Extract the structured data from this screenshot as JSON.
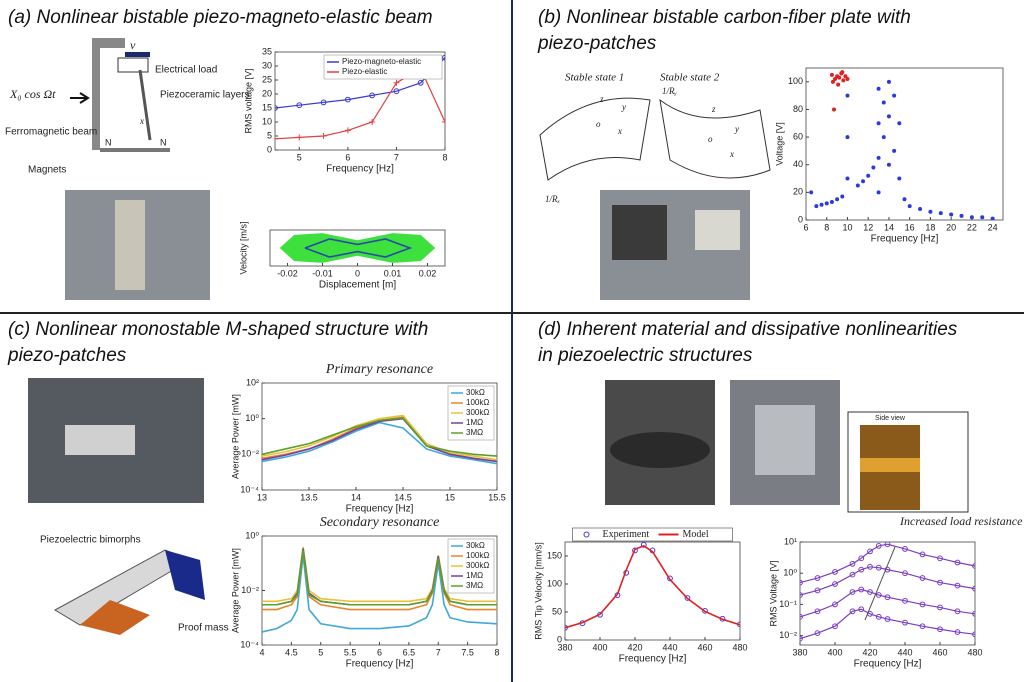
{
  "panels": [
    {
      "title": [
        "(a) Nonlinear bistable piezo-magneto-elastic beam"
      ]
    },
    {
      "title": [
        "(b) Nonlinear bistable carbon-fiber plate with",
        "piezo-patches"
      ]
    },
    {
      "title": [
        "(c) Nonlinear monostable M-shaped structure with",
        "piezo-patches"
      ]
    },
    {
      "title": [
        "(d) Inherent material and dissipative nonlinearities",
        "in piezoelectric structures"
      ]
    }
  ],
  "labels": [
    "Electrical load",
    "Piezoceramic layers",
    "Ferromagnetic beam",
    "Magnets",
    "X₀ cos Ωt",
    "v",
    "x",
    "N",
    "N",
    "Stable state 1",
    "Stable state 2",
    "1/Rₓ",
    "1/Rᵧ",
    "z",
    "y",
    "x",
    "o",
    "z",
    "y",
    "x",
    "o",
    "Piezoelectric bimorphs",
    "Proof mass",
    "Side view"
  ],
  "chart_data": [
    {
      "type": "line",
      "x": [
        4.5,
        5,
        5.5,
        6,
        6.5,
        7,
        7.5,
        8
      ],
      "xlim": [
        4.5,
        8
      ],
      "xticks": [
        5,
        6,
        7,
        8
      ],
      "ylim": [
        0,
        35
      ],
      "yticks": [
        0,
        5,
        10,
        15,
        20,
        25,
        30,
        35
      ],
      "xlabel": "Frequency [Hz]",
      "ylabel": "RMS voltage [V]",
      "legend": "upper right",
      "series": [
        {
          "name": "Piezo-magneto-elastic",
          "color": "#3a3ad0",
          "marker": "o",
          "values": [
            15,
            16,
            17,
            18,
            19.5,
            21,
            24,
            33
          ]
        },
        {
          "name": "Piezo-elastic",
          "color": "#e04040",
          "marker": "+",
          "values": [
            4,
            4.5,
            5,
            7,
            10,
            24,
            29,
            10
          ]
        }
      ]
    },
    {
      "type": "line",
      "xlim": [
        -0.025,
        0.025
      ],
      "xticks": [
        -0.02,
        -0.01,
        0,
        0.01,
        0.02
      ],
      "ylim": [
        -1,
        1
      ],
      "xlabel": "Displacement [m]",
      "ylabel": "Velocity [m/s]",
      "series": [
        {
          "color": "#3ee03e",
          "fill": true,
          "x": [
            -0.022,
            -0.018,
            -0.01,
            0,
            0.01,
            0.018,
            0.022,
            0.018,
            0.01,
            0,
            -0.01,
            -0.018,
            -0.022
          ],
          "values": [
            0,
            0.7,
            0.8,
            0.4,
            0.8,
            0.7,
            0,
            -0.7,
            -0.8,
            -0.4,
            -0.8,
            -0.7,
            0
          ]
        },
        {
          "color": "#2a4aa8",
          "x": [
            -0.015,
            -0.008,
            0,
            0.008,
            0.015,
            0.008,
            0,
            -0.008,
            -0.015
          ],
          "values": [
            0,
            0.5,
            0.2,
            0.5,
            0,
            -0.5,
            -0.2,
            -0.5,
            0
          ]
        }
      ]
    },
    {
      "type": "scatter",
      "xlim": [
        6,
        25
      ],
      "xticks": [
        6,
        8,
        10,
        12,
        14,
        16,
        18,
        20,
        22,
        24
      ],
      "ylim": [
        0,
        110
      ],
      "yticks": [
        0,
        20,
        40,
        60,
        80,
        100
      ],
      "xlabel": "Frequency  [Hz]",
      "ylabel": "Voltage [V]",
      "series": [
        {
          "color": "#2a3ae0",
          "x": [
            6.5,
            7,
            7.5,
            8,
            8.5,
            9,
            9.5,
            10,
            10,
            10,
            11,
            11.5,
            12,
            12.5,
            13,
            13,
            13,
            13,
            13.5,
            13.5,
            14,
            14,
            14,
            14.5,
            14.5,
            15,
            15,
            15.5,
            16,
            17,
            18,
            19,
            20,
            21,
            22,
            23,
            24
          ],
          "values": [
            20,
            10,
            11,
            12,
            13,
            15,
            17,
            30,
            60,
            90,
            25,
            28,
            32,
            38,
            45,
            70,
            95,
            20,
            60,
            85,
            40,
            75,
            100,
            50,
            90,
            30,
            70,
            15,
            10,
            8,
            6,
            5,
            4,
            3,
            2,
            2,
            1
          ]
        },
        {
          "color": "#e02020",
          "x": [
            8.5,
            8.6,
            8.8,
            9,
            9.2,
            9.4,
            9.6,
            9.8,
            10,
            8.7,
            9.1,
            9.5
          ],
          "values": [
            105,
            100,
            102,
            104,
            103,
            106,
            101,
            104,
            102,
            80,
            98,
            107
          ]
        }
      ]
    },
    {
      "type": "line",
      "title": "Primary resonance",
      "log": true,
      "x": [
        13,
        13.25,
        13.5,
        13.75,
        14,
        14.25,
        14.5,
        14.75,
        15,
        15.25,
        15.5
      ],
      "xlim": [
        13,
        15.5
      ],
      "xticks": [
        13,
        13.5,
        14,
        14.5,
        15,
        15.5
      ],
      "ylim": [
        0.0001,
        100
      ],
      "yticks": [
        {
          "value": 0.0001,
          "label": "10⁻⁴"
        },
        {
          "value": 0.01,
          "label": "10⁻²"
        },
        {
          "value": 1,
          "label": "10⁰"
        },
        {
          "value": 100,
          "label": "10²"
        }
      ],
      "xlabel": "Frequency [Hz]",
      "ylabel": "Average Power [mW]",
      "legend": "upper right",
      "series": [
        {
          "name": "30kΩ",
          "color": "#3fa9d8",
          "values": [
            0.004,
            0.007,
            0.015,
            0.05,
            0.2,
            0.6,
            0.3,
            0.02,
            0.008,
            0.005,
            0.003
          ]
        },
        {
          "name": "100kΩ",
          "color": "#e8862a",
          "values": [
            0.006,
            0.01,
            0.02,
            0.07,
            0.3,
            0.8,
            1.2,
            0.03,
            0.01,
            0.006,
            0.004
          ]
        },
        {
          "name": "300kΩ",
          "color": "#e8c23a",
          "values": [
            0.008,
            0.014,
            0.03,
            0.1,
            0.4,
            1,
            1.5,
            0.04,
            0.012,
            0.008,
            0.005
          ]
        },
        {
          "name": "1MΩ",
          "color": "#7b3f9e",
          "values": [
            0.005,
            0.009,
            0.02,
            0.06,
            0.25,
            0.7,
            1,
            0.03,
            0.01,
            0.006,
            0.004
          ]
        },
        {
          "name": "3MΩ",
          "color": "#5aa02c",
          "values": [
            0.01,
            0.02,
            0.04,
            0.12,
            0.35,
            0.8,
            1.1,
            0.03,
            0.015,
            0.01,
            0.008
          ]
        }
      ]
    },
    {
      "type": "line",
      "title": "Secondary resonance",
      "log": true,
      "x": [
        4,
        4.25,
        4.5,
        4.6,
        4.7,
        4.8,
        5,
        5.5,
        6,
        6.5,
        6.8,
        6.9,
        7,
        7.1,
        7.2,
        7.5,
        8
      ],
      "xlim": [
        4,
        8
      ],
      "xticks": [
        4,
        4.5,
        5,
        5.5,
        6,
        6.5,
        7,
        7.5,
        8
      ],
      "ylim": [
        0.0001,
        1
      ],
      "yticks": [
        {
          "value": 0.0001,
          "label": "10⁻⁴"
        },
        {
          "value": 0.01,
          "label": "10⁻²"
        },
        {
          "value": 1,
          "label": "10⁰"
        }
      ],
      "xlabel": "Frequency [Hz]",
      "ylabel": "Average Power [mW]",
      "legend": "upper right",
      "series": [
        {
          "name": "30kΩ",
          "color": "#3fa9d8",
          "values": [
            0.0003,
            0.0004,
            0.0008,
            0.002,
            0.2,
            0.002,
            0.0006,
            0.0004,
            0.0004,
            0.0005,
            0.001,
            0.003,
            0.1,
            0.003,
            0.001,
            0.0007,
            0.0006
          ]
        },
        {
          "name": "100kΩ",
          "color": "#e8862a",
          "values": [
            0.002,
            0.002,
            0.003,
            0.006,
            0.3,
            0.006,
            0.003,
            0.002,
            0.002,
            0.002,
            0.003,
            0.008,
            0.15,
            0.008,
            0.003,
            0.002,
            0.002
          ]
        },
        {
          "name": "300kΩ",
          "color": "#e8c23a",
          "values": [
            0.004,
            0.004,
            0.005,
            0.01,
            0.4,
            0.01,
            0.005,
            0.004,
            0.004,
            0.004,
            0.005,
            0.012,
            0.2,
            0.012,
            0.005,
            0.004,
            0.004
          ]
        },
        {
          "name": "1MΩ",
          "color": "#7b3f9e",
          "values": [
            0.003,
            0.003,
            0.004,
            0.008,
            0.35,
            0.008,
            0.004,
            0.003,
            0.003,
            0.003,
            0.004,
            0.01,
            0.18,
            0.01,
            0.004,
            0.003,
            0.003
          ]
        },
        {
          "name": "3MΩ",
          "color": "#5aa02c",
          "values": [
            0.003,
            0.003,
            0.004,
            0.007,
            0.3,
            0.007,
            0.004,
            0.003,
            0.003,
            0.003,
            0.004,
            0.009,
            0.15,
            0.009,
            0.004,
            0.003,
            0.003
          ]
        }
      ]
    },
    {
      "type": "line",
      "x": [
        380,
        390,
        400,
        410,
        415,
        420,
        425,
        430,
        440,
        450,
        460,
        470,
        480
      ],
      "xlim": [
        380,
        480
      ],
      "xticks": [
        380,
        400,
        420,
        440,
        460,
        480
      ],
      "ylim": [
        0,
        175
      ],
      "yticks": [
        0,
        50,
        100,
        150
      ],
      "xlabel": "Frequency [Hz]",
      "ylabel": "RMS Tip Velocity [mm/s]",
      "legend": "upper center",
      "series": [
        {
          "name": "Experiment",
          "color": "#4a3ad8",
          "marker": "o",
          "line": false,
          "values": [
            22,
            30,
            45,
            80,
            120,
            160,
            170,
            160,
            110,
            75,
            52,
            38,
            28
          ]
        },
        {
          "name": "Model",
          "color": "#e02020",
          "values": [
            22,
            31,
            46,
            82,
            125,
            162,
            168,
            158,
            108,
            74,
            51,
            37,
            27
          ]
        }
      ]
    },
    {
      "type": "line",
      "log": true,
      "x": [
        380,
        390,
        400,
        410,
        415,
        420,
        425,
        430,
        440,
        450,
        460,
        470,
        480
      ],
      "xlim": [
        380,
        480
      ],
      "xticks": [
        380,
        400,
        420,
        440,
        460,
        480
      ],
      "ylim": [
        0.005,
        10
      ],
      "yticks": [
        {
          "value": 0.01,
          "label": "10⁻²"
        },
        {
          "value": 0.1,
          "label": "10⁻¹"
        },
        {
          "value": 1,
          "label": "10⁰"
        },
        {
          "value": 10,
          "label": "10¹"
        }
      ],
      "xlabel": "Frequency [Hz]",
      "ylabel": "RMS Voltage [V]",
      "annotation": "Increased load resistance",
      "series": [
        {
          "color": "#7a3fc4",
          "marker": "o",
          "values": [
            0.5,
            0.7,
            1.1,
            2,
            3,
            5,
            7.5,
            8.5,
            6,
            4,
            3,
            2.2,
            1.7
          ]
        },
        {
          "color": "#7a3fc4",
          "marker": "o",
          "values": [
            0.2,
            0.28,
            0.45,
            0.9,
            1.3,
            1.6,
            1.5,
            1.3,
            1,
            0.7,
            0.5,
            0.4,
            0.32
          ]
        },
        {
          "color": "#7a3fc4",
          "marker": "o",
          "values": [
            0.04,
            0.06,
            0.1,
            0.25,
            0.3,
            0.25,
            0.2,
            0.17,
            0.13,
            0.1,
            0.08,
            0.06,
            0.05
          ]
        },
        {
          "color": "#7a3fc4",
          "marker": "o",
          "values": [
            0.008,
            0.012,
            0.02,
            0.06,
            0.07,
            0.05,
            0.04,
            0.034,
            0.026,
            0.02,
            0.016,
            0.013,
            0.011
          ]
        }
      ]
    }
  ]
}
